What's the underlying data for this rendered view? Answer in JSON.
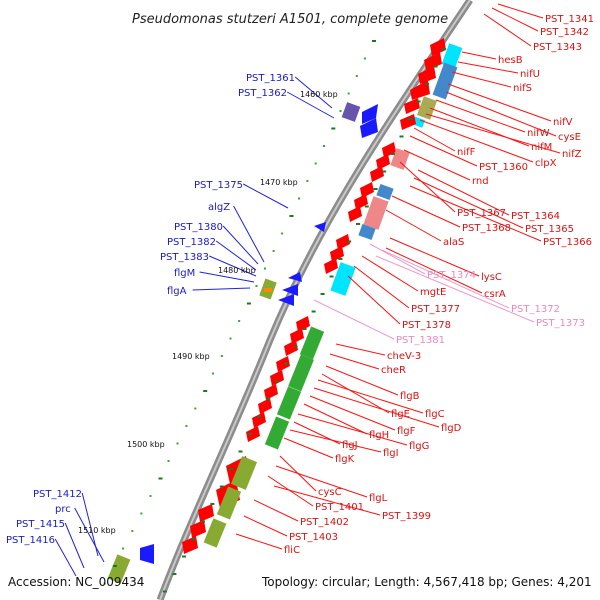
{
  "title": "Pseudomonas stutzeri A1501, complete genome",
  "accession": "Accession: NC_009434",
  "topology": "Topology: circular; Length: 4,567,418 bp; Genes: 4,201",
  "ticks": [
    "1460 kbp",
    "1470 kbp",
    "1480 kbp",
    "1490 kbp",
    "1500 kbp",
    "1510 kbp"
  ],
  "colors": {
    "backbone": "#9a9a9a",
    "minus_label": "#1a1acc",
    "plus_label": "#dd1111",
    "rna_label": "#ee88bb",
    "red": "#ff0000",
    "blue": "#1a1aff",
    "green": "#33aa33",
    "olive": "#88aa33"
  },
  "labels": [
    {
      "id": "PST_1341",
      "color": "red"
    },
    {
      "id": "PST_1342",
      "color": "red"
    },
    {
      "id": "PST_1343",
      "color": "red"
    },
    {
      "id": "hesB",
      "color": "red"
    },
    {
      "id": "nifU",
      "color": "red"
    },
    {
      "id": "nifS",
      "color": "red"
    },
    {
      "id": "nifV",
      "color": "red"
    },
    {
      "id": "cysE",
      "color": "red"
    },
    {
      "id": "nifW",
      "color": "red"
    },
    {
      "id": "nifM",
      "color": "red"
    },
    {
      "id": "nifZ",
      "color": "red"
    },
    {
      "id": "clpX",
      "color": "red"
    },
    {
      "id": "nifF",
      "color": "red"
    },
    {
      "id": "PST_1360",
      "color": "red"
    },
    {
      "id": "rnd",
      "color": "red"
    },
    {
      "id": "PST_1367",
      "color": "red"
    },
    {
      "id": "PST_1364",
      "color": "red"
    },
    {
      "id": "PST_1365",
      "color": "red"
    },
    {
      "id": "PST_1366",
      "color": "red"
    },
    {
      "id": "PST_1368",
      "color": "red"
    },
    {
      "id": "alaS",
      "color": "red"
    },
    {
      "id": "lysC",
      "color": "red"
    },
    {
      "id": "PST_1374",
      "color": "pink"
    },
    {
      "id": "csrA",
      "color": "red"
    },
    {
      "id": "mgtE",
      "color": "red"
    },
    {
      "id": "PST_1372",
      "color": "pink"
    },
    {
      "id": "PST_1373",
      "color": "pink"
    },
    {
      "id": "PST_1377",
      "color": "red"
    },
    {
      "id": "PST_1378",
      "color": "red"
    },
    {
      "id": "PST_1381",
      "color": "pink"
    },
    {
      "id": "cheV-3",
      "color": "red"
    },
    {
      "id": "cheR",
      "color": "red"
    },
    {
      "id": "flgB",
      "color": "red"
    },
    {
      "id": "flgE",
      "color": "red"
    },
    {
      "id": "flgC",
      "color": "red"
    },
    {
      "id": "flgD",
      "color": "red"
    },
    {
      "id": "flgF",
      "color": "red"
    },
    {
      "id": "flgH",
      "color": "red"
    },
    {
      "id": "flgG",
      "color": "red"
    },
    {
      "id": "flgJ",
      "color": "red"
    },
    {
      "id": "flgI",
      "color": "red"
    },
    {
      "id": "flgK",
      "color": "red"
    },
    {
      "id": "cysC",
      "color": "red"
    },
    {
      "id": "flgL",
      "color": "red"
    },
    {
      "id": "PST_1401",
      "color": "red"
    },
    {
      "id": "PST_1399",
      "color": "red"
    },
    {
      "id": "PST_1402",
      "color": "red"
    },
    {
      "id": "PST_1403",
      "color": "red"
    },
    {
      "id": "fliC",
      "color": "red"
    },
    {
      "id": "PST_1361",
      "color": "blue"
    },
    {
      "id": "PST_1362",
      "color": "blue"
    },
    {
      "id": "PST_1375",
      "color": "blue"
    },
    {
      "id": "algZ",
      "color": "blue"
    },
    {
      "id": "PST_1380",
      "color": "blue"
    },
    {
      "id": "PST_1382",
      "color": "blue"
    },
    {
      "id": "PST_1383",
      "color": "blue"
    },
    {
      "id": "flgM",
      "color": "blue"
    },
    {
      "id": "flgA",
      "color": "blue"
    },
    {
      "id": "PST_1412",
      "color": "blue"
    },
    {
      "id": "prc",
      "color": "blue"
    },
    {
      "id": "PST_1415",
      "color": "blue"
    },
    {
      "id": "PST_1416",
      "color": "blue"
    }
  ]
}
